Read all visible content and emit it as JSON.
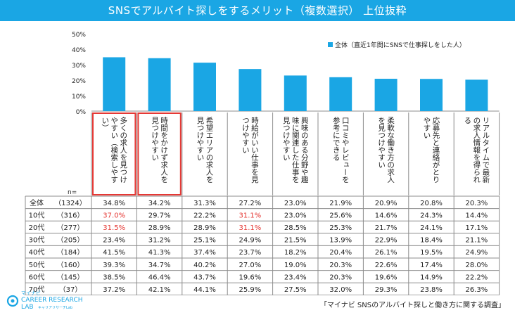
{
  "title": "SNSでアルバイト探しをするメリット（複数選択） 上位抜粋",
  "legend_label": "全体（直近1年間にSNSで仕事探しをした人）",
  "n_label": "n=",
  "source_note": "「マイナビ SNSのアルバイト探しと働き方に関する調査」",
  "logo": {
    "small": "マイナビ",
    "line1": "CAREER RESEARCH",
    "line2": "LAB",
    "sub": "キャリアリサーチLab"
  },
  "colors": {
    "bar": "#1aa6e4",
    "title_bg": "#1aa6e4",
    "highlight_box": "#e53935",
    "highlight_text": "#e53935"
  },
  "chart_data": {
    "type": "bar",
    "title": "SNSでアルバイト探しをするメリット（複数選択） 上位抜粋",
    "ylim": [
      0,
      50
    ],
    "y_ticks": [
      "0%",
      "10%",
      "20%",
      "30%",
      "40%",
      "50%"
    ],
    "categories": [
      "多くの求人を見つけやすい（検索しやすい）",
      "時間をかけず求人を見つけやすい",
      "希望エリアの求人を見つけやすい",
      "時給がいい仕事を見つけやすい",
      "興味のある分野や趣味に関連した仕事を見つけやすい",
      "口コミやレビューを参考にできる",
      "柔軟な働き方の求人を見つけやすい",
      "応募先と連絡がとりやすい",
      "リアルタイムで最新の求人情報を得られる"
    ],
    "series": [
      {
        "name": "全体（直近1年間にSNSで仕事探しをした人）",
        "values": [
          34.8,
          34.2,
          31.3,
          27.2,
          23.0,
          21.9,
          20.9,
          20.8,
          20.3
        ]
      }
    ],
    "highlighted_categories": [
      0,
      1
    ],
    "table": {
      "rows": [
        {
          "label": "全体",
          "n": "（1324）",
          "values": [
            "34.8%",
            "34.2%",
            "31.3%",
            "27.2%",
            "23.0%",
            "21.9%",
            "20.9%",
            "20.8%",
            "20.3%"
          ],
          "red": []
        },
        {
          "label": "10代",
          "n": "（316）",
          "values": [
            "37.0%",
            "29.7%",
            "22.2%",
            "31.1%",
            "23.0%",
            "25.6%",
            "14.6%",
            "24.3%",
            "14.4%"
          ],
          "red": [
            0,
            3
          ]
        },
        {
          "label": "20代",
          "n": "（277）",
          "values": [
            "31.5%",
            "28.9%",
            "28.9%",
            "31.1%",
            "28.5%",
            "25.3%",
            "21.7%",
            "24.1%",
            "17.1%"
          ],
          "red": [
            0,
            3
          ]
        },
        {
          "label": "30代",
          "n": "（205）",
          "values": [
            "23.4%",
            "31.2%",
            "25.1%",
            "24.9%",
            "21.5%",
            "13.9%",
            "22.9%",
            "18.4%",
            "21.1%"
          ],
          "red": []
        },
        {
          "label": "40代",
          "n": "（184）",
          "values": [
            "41.5%",
            "41.3%",
            "37.4%",
            "23.7%",
            "18.2%",
            "20.4%",
            "26.1%",
            "19.5%",
            "24.9%"
          ],
          "red": []
        },
        {
          "label": "50代",
          "n": "（160）",
          "values": [
            "39.3%",
            "34.7%",
            "40.2%",
            "27.0%",
            "19.0%",
            "20.3%",
            "22.6%",
            "17.4%",
            "28.0%"
          ],
          "red": []
        },
        {
          "label": "60代",
          "n": "（145）",
          "values": [
            "38.5%",
            "46.4%",
            "43.7%",
            "19.6%",
            "23.4%",
            "20.3%",
            "19.6%",
            "14.9%",
            "22.2%"
          ],
          "red": []
        },
        {
          "label": "70代",
          "n": "（37）",
          "values": [
            "37.2%",
            "42.1%",
            "44.1%",
            "25.9%",
            "27.5%",
            "32.0%",
            "29.3%",
            "23.8%",
            "26.3%"
          ],
          "red": []
        }
      ]
    }
  }
}
